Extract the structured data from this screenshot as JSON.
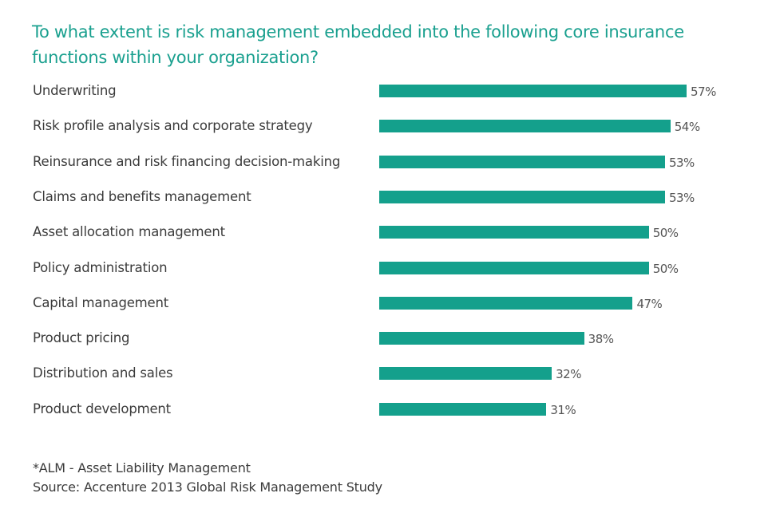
{
  "chart_data": {
    "type": "bar",
    "orientation": "horizontal",
    "title": "To what extent is risk management embedded into the following core insurance functions within your organization?",
    "categories": [
      "Underwriting",
      "Risk profile analysis and corporate strategy",
      "Reinsurance and risk financing decision-making",
      "Claims and benefits management",
      "Asset allocation management",
      "Policy administration",
      "Capital management",
      "Product pricing",
      "Distribution and sales",
      "Product development"
    ],
    "values": [
      57,
      54,
      53,
      53,
      50,
      50,
      47,
      38,
      32,
      31
    ],
    "value_labels": [
      "57%",
      "54%",
      "53%",
      "53%",
      "50%",
      "50%",
      "47%",
      "38%",
      "32%",
      "31%"
    ],
    "unit": "%",
    "xlim": [
      0,
      57
    ],
    "grid": false,
    "bar_color": "#14a08c",
    "title_color": "#1aa08f"
  },
  "footnotes": {
    "note": "*ALM - Asset Liability Management",
    "source": "Source: Accenture 2013 Global Risk Management Study"
  }
}
